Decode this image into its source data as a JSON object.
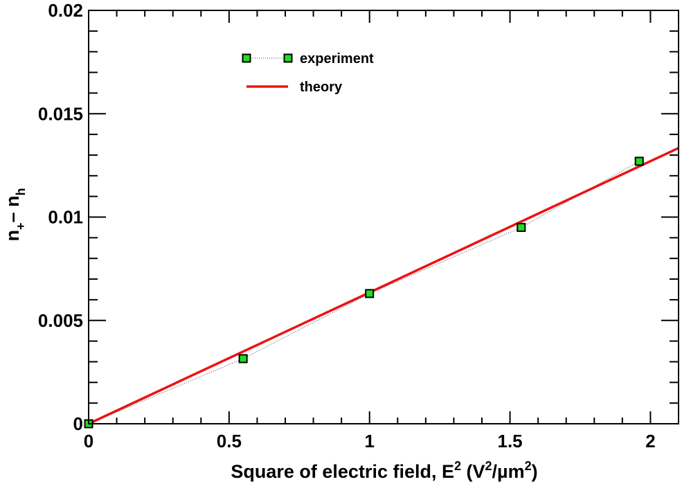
{
  "chart_data": {
    "type": "scatter",
    "xlim": [
      0,
      2.1
    ],
    "ylim": [
      0,
      0.02
    ],
    "x_ticks": [
      {
        "value": 0,
        "label": "0"
      },
      {
        "value": 0.5,
        "label": "0.5"
      },
      {
        "value": 1,
        "label": "1"
      },
      {
        "value": 1.5,
        "label": "1.5"
      },
      {
        "value": 2,
        "label": "2"
      }
    ],
    "y_ticks": [
      {
        "value": 0,
        "label": "0"
      },
      {
        "value": 0.005,
        "label": "0.005"
      },
      {
        "value": 0.01,
        "label": "0.01"
      },
      {
        "value": 0.015,
        "label": "0.015"
      },
      {
        "value": 0.02,
        "label": "0.02"
      }
    ],
    "xlabel": {
      "main": "Square of electric field, E",
      "sup1": "2",
      "mid1": " (V",
      "sup2": "2",
      "mid2": "/µm",
      "sup3": "2",
      "end": ")"
    },
    "ylabel": {
      "a": "n",
      "a_sub": "+",
      "dash": "– n",
      "b_sub": "h"
    },
    "grid": false,
    "legend_position": "top-left",
    "series": [
      {
        "name": "experiment",
        "kind": "markers-dotted-line",
        "marker_color": "#22dd22",
        "line_color": "#3a3a6a",
        "x": [
          0,
          0.55,
          1.0,
          1.54,
          1.96
        ],
        "y": [
          0,
          0.00315,
          0.0063,
          0.0095,
          0.0127
        ]
      },
      {
        "name": "theory",
        "kind": "line",
        "color": "#ee1111",
        "x": [
          0,
          2.1
        ],
        "y": [
          0,
          0.01334
        ]
      }
    ]
  }
}
